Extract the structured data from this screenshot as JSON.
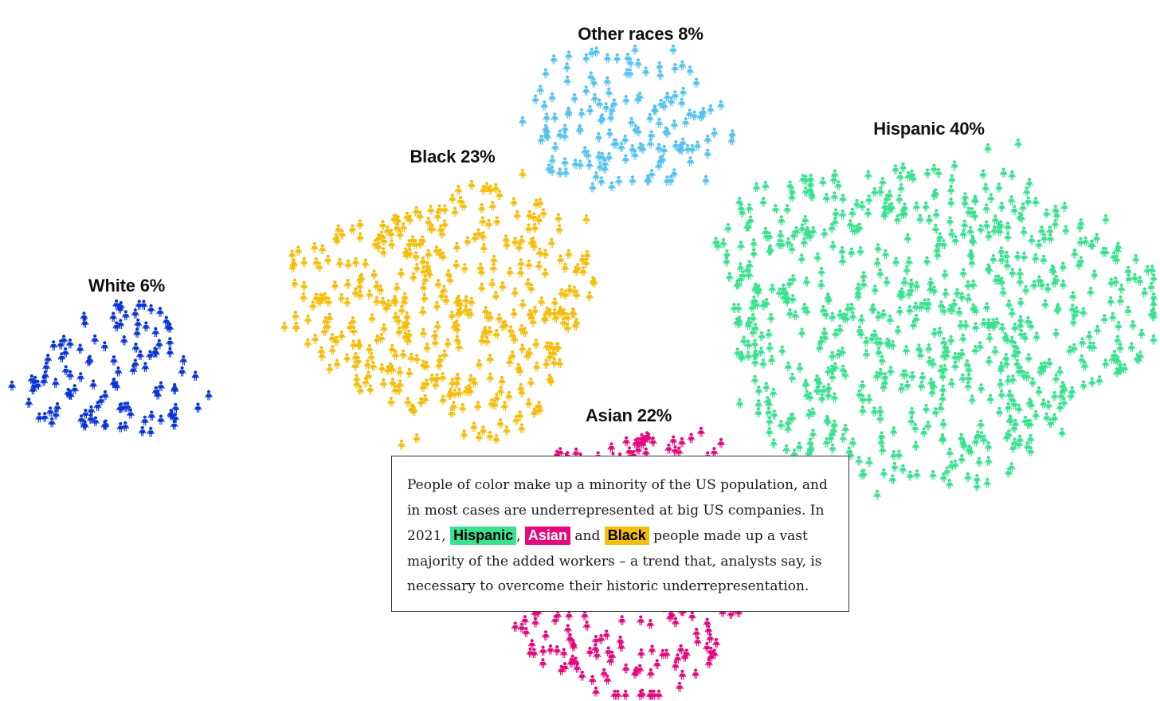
{
  "chart_data": {
    "type": "unit-scatter",
    "title": "",
    "unit": "person icon",
    "groups": [
      {
        "key": "white",
        "label": "White 6%",
        "name": "White",
        "percent": 6,
        "color": "#0a35d6",
        "icon_count": 115
      },
      {
        "key": "black",
        "label": "Black 23%",
        "name": "Black",
        "percent": 23,
        "color": "#f5bd0c",
        "icon_count": 420
      },
      {
        "key": "other",
        "label": "Other races 8%",
        "name": "Other races",
        "percent": 8,
        "color": "#56c3ef",
        "icon_count": 150
      },
      {
        "key": "hispanic",
        "label": "Hispanic 40%",
        "name": "Hispanic",
        "percent": 40,
        "color": "#3ae28f",
        "icon_count": 730
      },
      {
        "key": "asian",
        "label": "Asian 22%",
        "name": "Asian",
        "percent": 22,
        "color": "#e5087d",
        "icon_count": 400
      }
    ]
  },
  "annotation": {
    "text_1": "People of color make up a minority of the US population, and in most cases are underrepresented at big US companies. In 2021, ",
    "hispanic": "Hispanic",
    "sep_1": ", ",
    "asian": "Asian",
    "sep_2": " and ",
    "black": "Black",
    "text_2": " people made up a vast majority of the added workers – a trend that, analysts say, is necessary to overcome their historic underrepresentation."
  }
}
